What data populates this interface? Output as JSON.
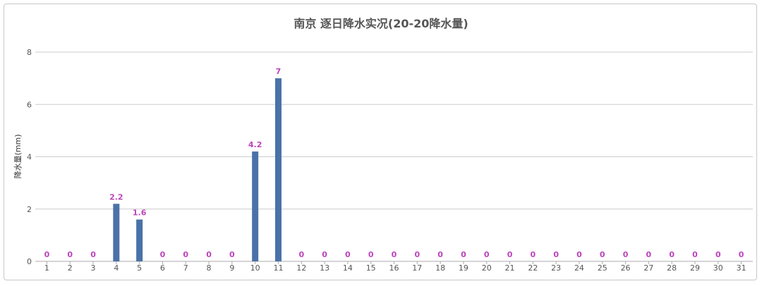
{
  "chart_data": {
    "type": "bar",
    "title": "南京 逐日降水实况(20-20降水量)",
    "xlabel": "",
    "ylabel": "降水量(mm)",
    "ylim": [
      0,
      8
    ],
    "yticks": [
      0,
      2,
      4,
      6,
      8
    ],
    "grid": true,
    "legend": "none",
    "categories": [
      "1",
      "2",
      "3",
      "4",
      "5",
      "6",
      "7",
      "8",
      "9",
      "10",
      "11",
      "12",
      "13",
      "14",
      "15",
      "16",
      "17",
      "18",
      "19",
      "20",
      "21",
      "22",
      "23",
      "24",
      "25",
      "26",
      "27",
      "28",
      "29",
      "30",
      "31"
    ],
    "values": [
      0,
      0,
      0,
      2.2,
      1.6,
      0,
      0,
      0,
      0,
      4.2,
      7,
      0,
      0,
      0,
      0,
      0,
      0,
      0,
      0,
      0,
      0,
      0,
      0,
      0,
      0,
      0,
      0,
      0,
      0,
      0,
      0
    ],
    "colors": {
      "bar": "#4a72a8",
      "label": "#bb44bb",
      "grid": "#cccccc",
      "axis": "#aaaaaa"
    }
  }
}
